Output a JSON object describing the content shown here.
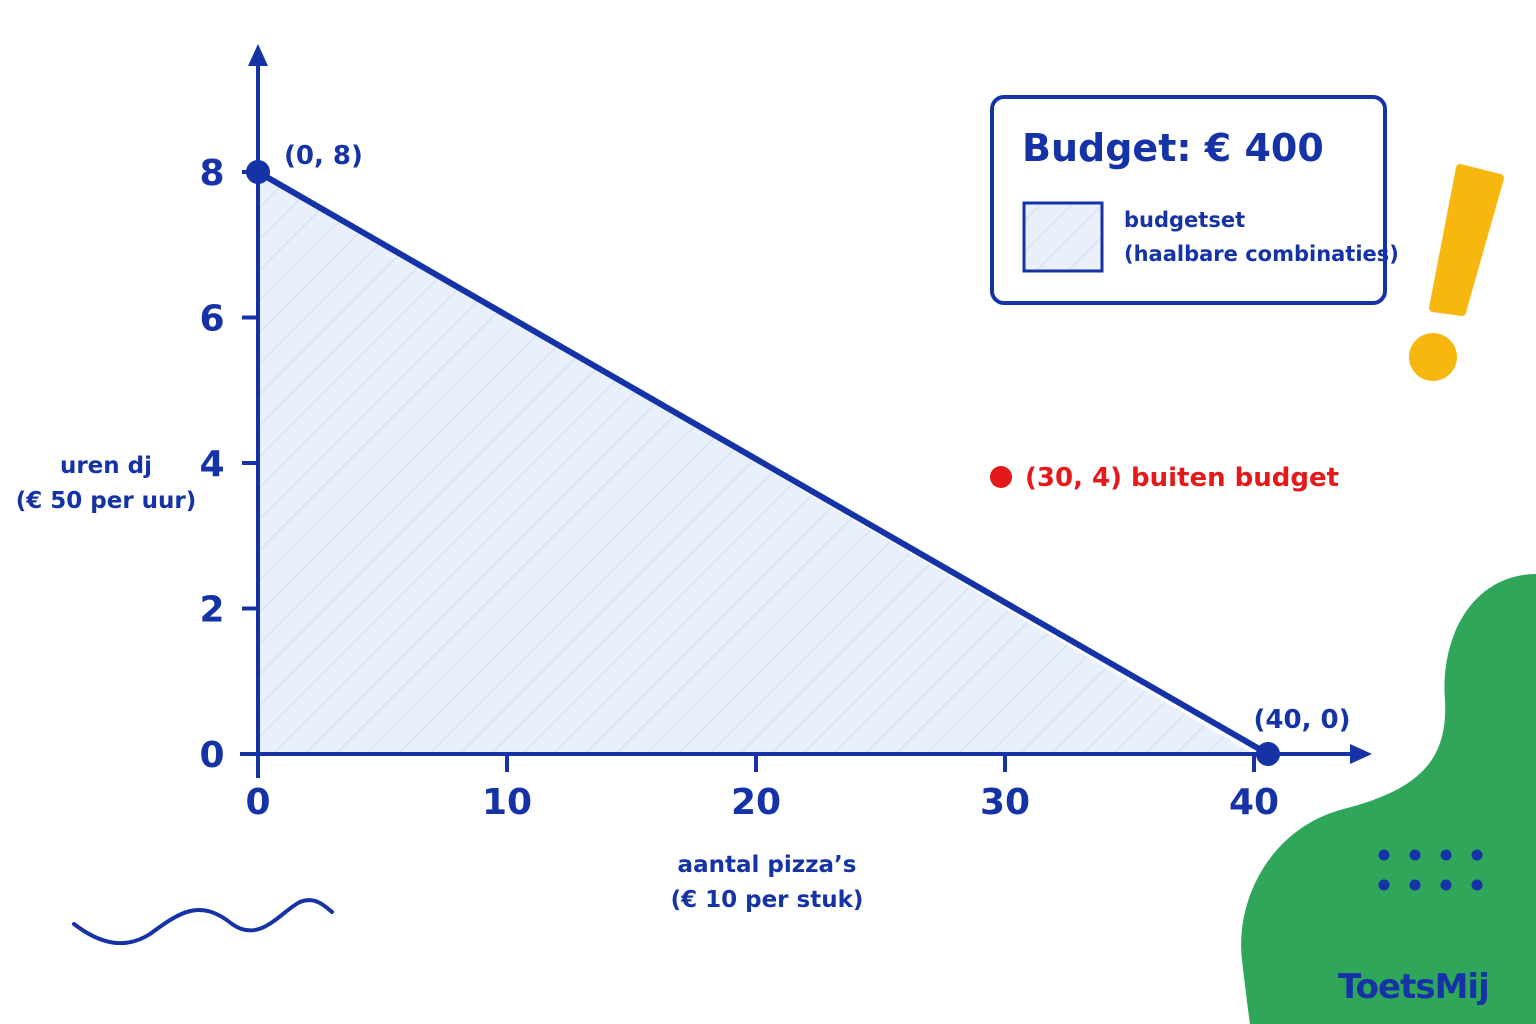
{
  "colors": {
    "primary": "#1533a6",
    "fill": "#e9f0fc",
    "hatch": "#c9d6f1",
    "outside": "#e51919",
    "accent": "#f7b70f",
    "green": "#2fa65a",
    "white": "#ffffff"
  },
  "chart_data": {
    "type": "area",
    "title": "",
    "xlabel_lines": [
      "aantal pizza’s",
      "(€ 10 per stuk)"
    ],
    "ylabel_lines": [
      "uren dj",
      "(€ 50 per uur)"
    ],
    "xlim": [
      0,
      40
    ],
    "ylim": [
      0,
      8
    ],
    "x_ticks": [
      0,
      10,
      20,
      30,
      40
    ],
    "y_ticks": [
      0,
      2,
      4,
      6,
      8
    ],
    "x_tick_labels": [
      "0",
      "10",
      "20",
      "30",
      "40"
    ],
    "y_tick_labels": [
      "0",
      "2",
      "4",
      "6",
      "8"
    ],
    "grid": false,
    "budget_line": [
      [
        0,
        8
      ],
      [
        40,
        0
      ]
    ],
    "feasible_region": [
      [
        0,
        0
      ],
      [
        0,
        8
      ],
      [
        40,
        0
      ]
    ],
    "points": [
      {
        "x": 0,
        "y": 8,
        "label": "(0, 8)",
        "kind": "intercept"
      },
      {
        "x": 40,
        "y": 0,
        "label": "(40, 0)",
        "kind": "intercept"
      },
      {
        "x": 30,
        "y": 4,
        "label": "(30, 4) buiten budget",
        "kind": "outside"
      }
    ],
    "legend": {
      "placement": "top-right",
      "title": "Budget: € 400",
      "entries": [
        {
          "swatch": "hatched-fill",
          "lines": [
            "budgetset",
            "(haalbare combinaties)"
          ]
        }
      ]
    }
  },
  "decorations": {
    "exclamation_icon": "exclamation-icon",
    "squiggle_icon": "squiggle-icon",
    "green_blob": "blob-shape",
    "dots_icon": "dot-grid-icon"
  },
  "logo": {
    "text": "ToetsMij"
  }
}
